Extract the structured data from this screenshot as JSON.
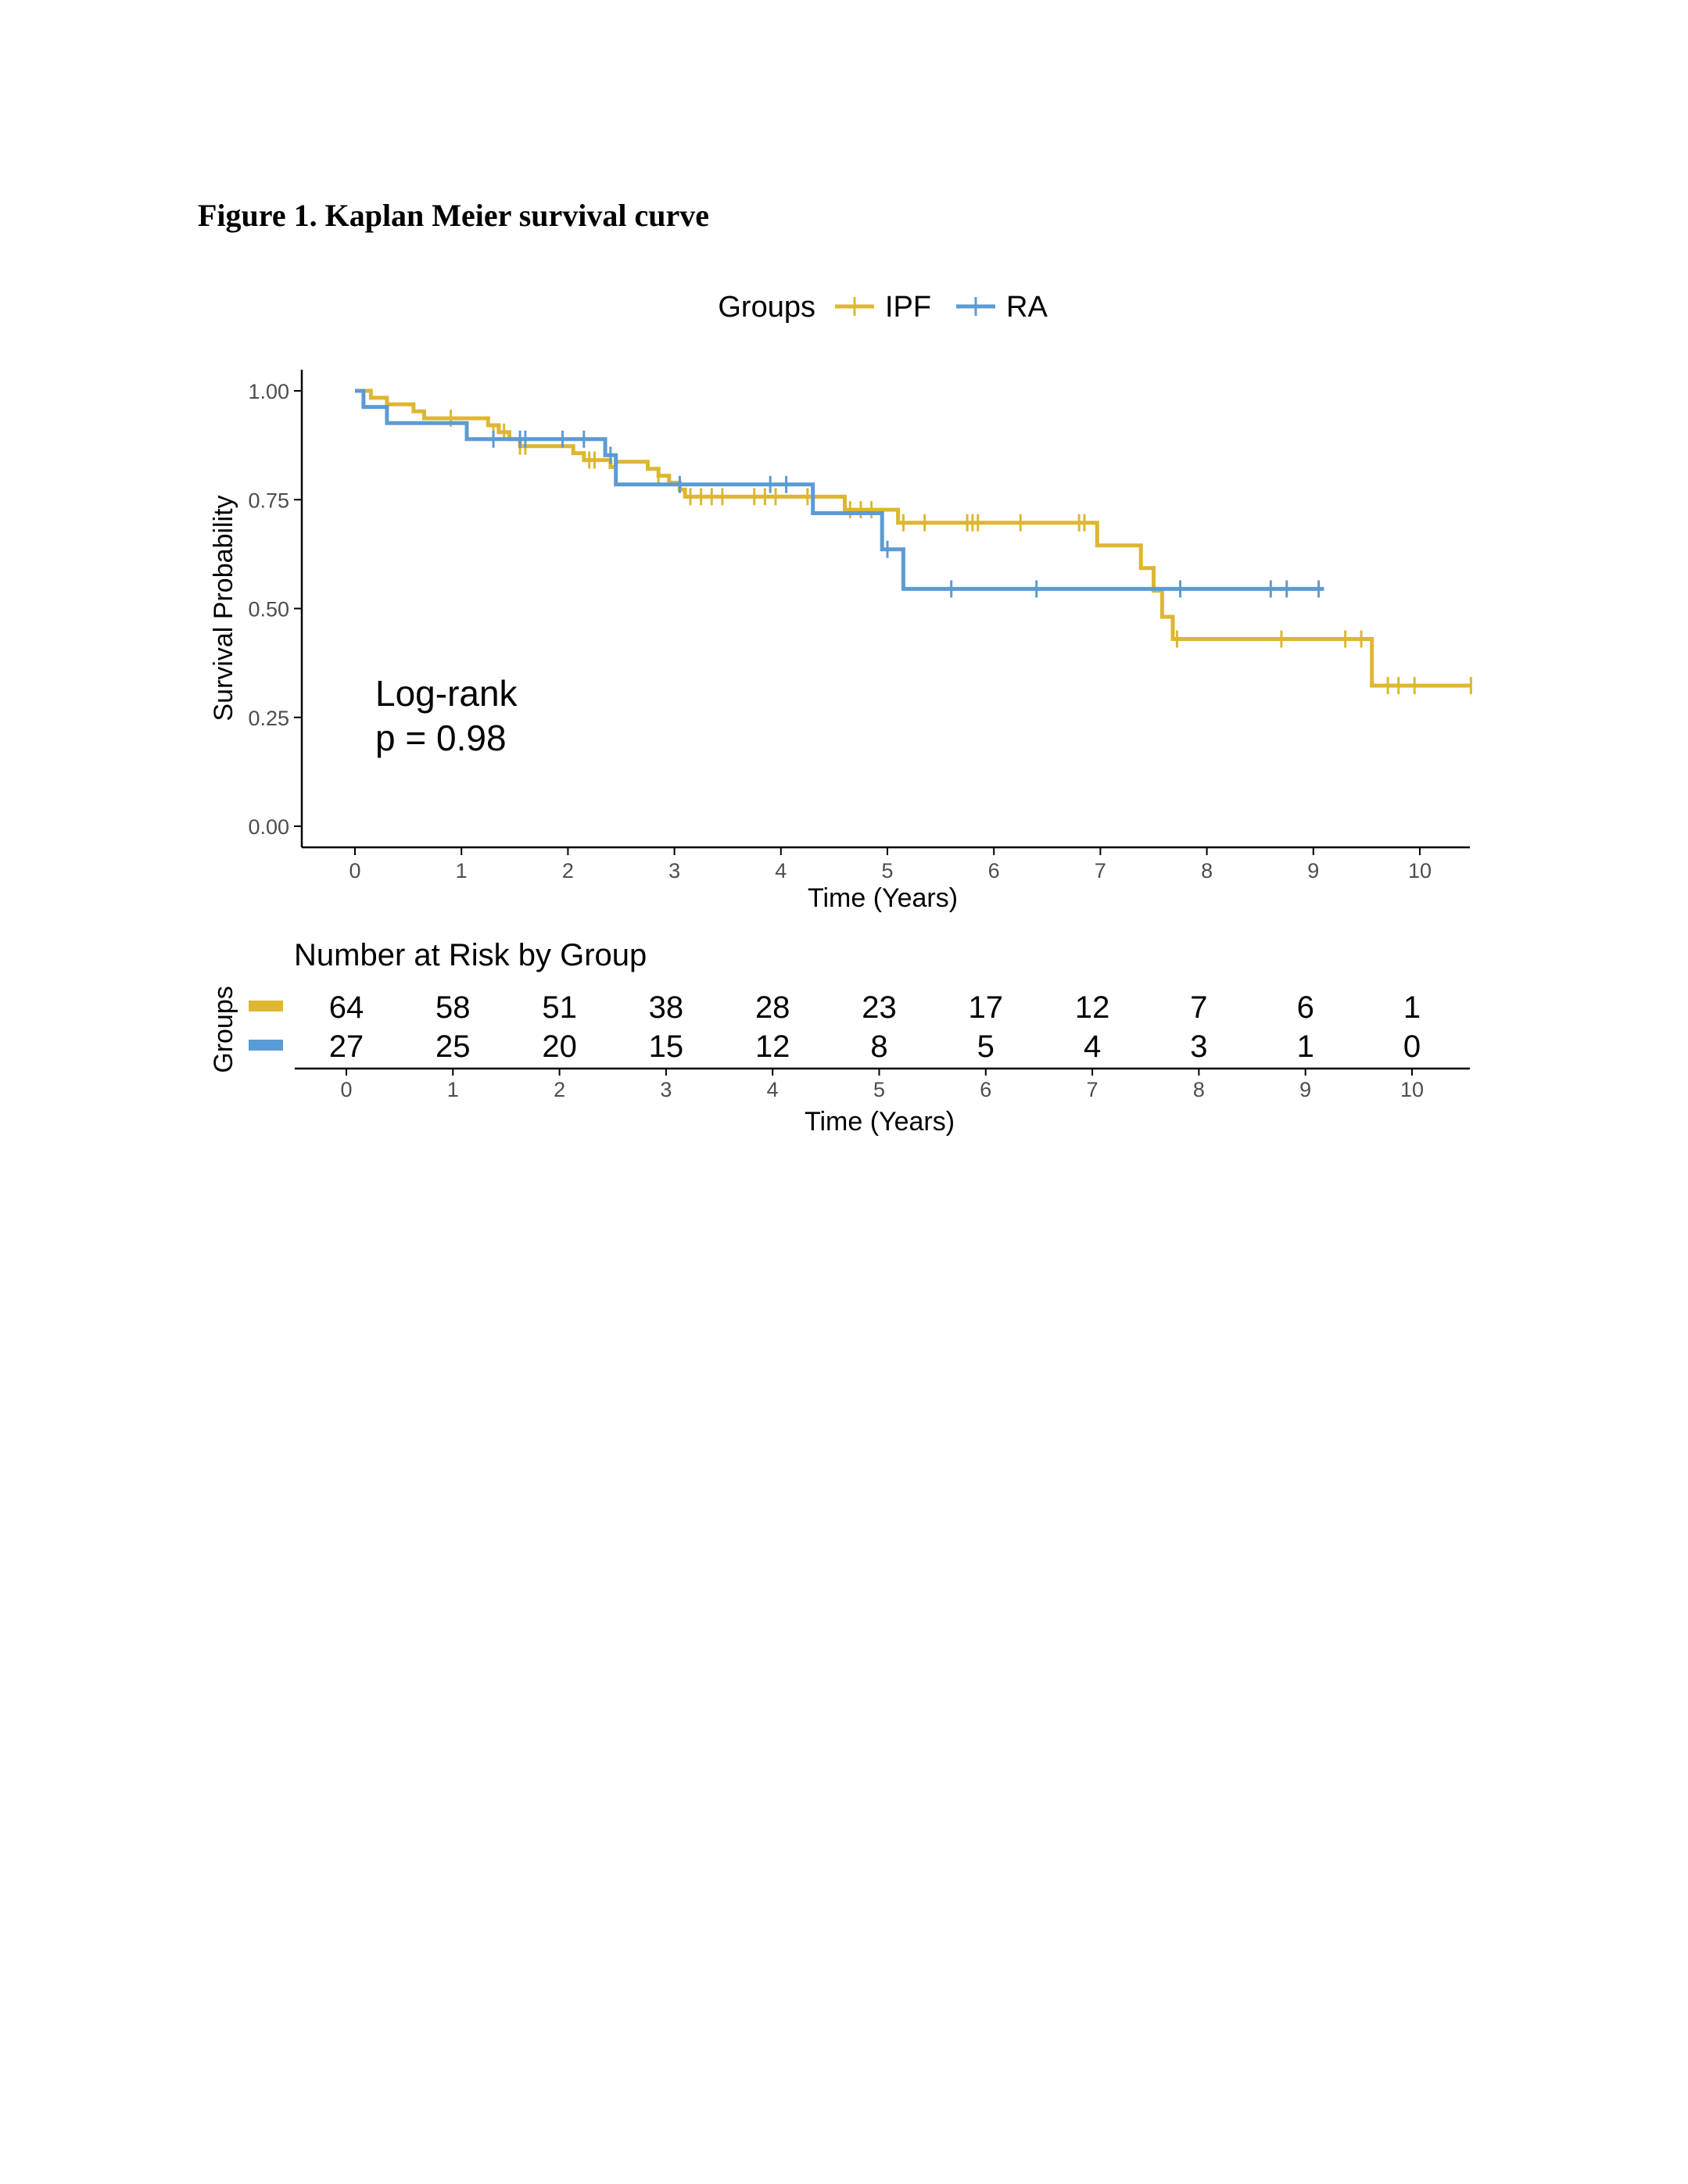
{
  "figure_title": "Figure 1. Kaplan Meier survival curve",
  "colors": {
    "ipf": "#DDB730",
    "ra": "#5B9BD5",
    "axis": "#000000",
    "tick_text": "#4D4D4D",
    "text": "#000000"
  },
  "chart_data": {
    "type": "line",
    "subtype": "kaplan-meier-step",
    "legend": {
      "title": "Groups",
      "placement": "top-center",
      "entries": [
        "IPF",
        "RA"
      ]
    },
    "xlabel": "Time (Years)",
    "ylabel": "Survival Probability",
    "xlim": [
      -0.5,
      10.5
    ],
    "ylim": [
      0,
      1.05
    ],
    "xticks": [
      0,
      1,
      2,
      3,
      4,
      5,
      6,
      7,
      8,
      9,
      10
    ],
    "xtick_labels": [
      "0",
      "1",
      "2",
      "3",
      "4",
      "5",
      "6",
      "7",
      "8",
      "9",
      "10"
    ],
    "yticks": [
      0,
      0.25,
      0.5,
      0.75,
      1.0
    ],
    "ytick_labels": [
      "0.00",
      "0.25",
      "0.50",
      "0.75",
      "1.00"
    ],
    "grid": false,
    "annotation": {
      "line1": "Log-rank",
      "line2": "p = 0.98"
    },
    "series": [
      {
        "name": "IPF",
        "color_key": "ipf",
        "steps": [
          [
            0,
            1.0
          ],
          [
            0.15,
            0.984
          ],
          [
            0.3,
            0.969
          ],
          [
            0.55,
            0.953
          ],
          [
            0.65,
            0.937
          ],
          [
            1.25,
            0.921
          ],
          [
            1.35,
            0.905
          ],
          [
            1.45,
            0.889
          ],
          [
            1.55,
            0.873
          ],
          [
            1.6,
            0.873
          ],
          [
            2.05,
            0.857
          ],
          [
            2.15,
            0.841
          ],
          [
            2.3,
            0.841
          ],
          [
            2.4,
            0.825
          ],
          [
            2.45,
            0.837
          ],
          [
            2.75,
            0.821
          ],
          [
            2.85,
            0.805
          ],
          [
            2.95,
            0.789
          ],
          [
            3.05,
            0.773
          ],
          [
            3.1,
            0.757
          ],
          [
            4.6,
            0.727
          ],
          [
            5.1,
            0.697
          ],
          [
            6.97,
            0.645
          ],
          [
            7.38,
            0.593
          ],
          [
            7.5,
            0.541
          ],
          [
            7.58,
            0.481
          ],
          [
            7.68,
            0.43
          ],
          [
            9.55,
            0.323
          ],
          [
            10.48,
            0.323
          ]
        ],
        "censored": [
          [
            0.9,
            0.937
          ],
          [
            1.3,
            0.905
          ],
          [
            1.4,
            0.905
          ],
          [
            1.55,
            0.873
          ],
          [
            1.6,
            0.873
          ],
          [
            2.2,
            0.841
          ],
          [
            2.25,
            0.841
          ],
          [
            2.45,
            0.837
          ],
          [
            2.85,
            0.805
          ],
          [
            3.15,
            0.757
          ],
          [
            3.25,
            0.757
          ],
          [
            3.35,
            0.757
          ],
          [
            3.45,
            0.757
          ],
          [
            3.75,
            0.757
          ],
          [
            3.85,
            0.757
          ],
          [
            3.95,
            0.757
          ],
          [
            4.25,
            0.757
          ],
          [
            4.65,
            0.727
          ],
          [
            4.75,
            0.727
          ],
          [
            4.85,
            0.727
          ],
          [
            5.15,
            0.697
          ],
          [
            5.35,
            0.697
          ],
          [
            5.75,
            0.697
          ],
          [
            5.8,
            0.697
          ],
          [
            5.85,
            0.697
          ],
          [
            6.25,
            0.697
          ],
          [
            6.8,
            0.697
          ],
          [
            6.85,
            0.697
          ],
          [
            7.72,
            0.43
          ],
          [
            8.7,
            0.43
          ],
          [
            9.3,
            0.43
          ],
          [
            9.45,
            0.43
          ],
          [
            9.7,
            0.323
          ],
          [
            9.8,
            0.323
          ],
          [
            9.95,
            0.323
          ],
          [
            10.48,
            0.323
          ]
        ],
        "number_at_risk": [
          64,
          58,
          51,
          38,
          28,
          23,
          17,
          12,
          7,
          6,
          1
        ]
      },
      {
        "name": "RA",
        "color_key": "ra",
        "steps": [
          [
            0,
            1.0
          ],
          [
            0.08,
            0.963
          ],
          [
            0.3,
            0.926
          ],
          [
            1.05,
            0.889
          ],
          [
            2.35,
            0.852
          ],
          [
            2.45,
            0.785
          ],
          [
            4.3,
            0.719
          ],
          [
            4.95,
            0.636
          ],
          [
            5.15,
            0.545
          ],
          [
            9.1,
            0.545
          ]
        ],
        "censored": [
          [
            1.3,
            0.889
          ],
          [
            1.55,
            0.889
          ],
          [
            1.6,
            0.889
          ],
          [
            1.95,
            0.889
          ],
          [
            2.15,
            0.889
          ],
          [
            2.4,
            0.852
          ],
          [
            3.05,
            0.785
          ],
          [
            3.9,
            0.785
          ],
          [
            4.05,
            0.785
          ],
          [
            5.0,
            0.636
          ],
          [
            5.6,
            0.545
          ],
          [
            6.4,
            0.545
          ],
          [
            7.75,
            0.545
          ],
          [
            8.6,
            0.545
          ],
          [
            8.75,
            0.545
          ],
          [
            9.05,
            0.545
          ]
        ],
        "number_at_risk": [
          27,
          25,
          20,
          15,
          12,
          8,
          5,
          4,
          3,
          1,
          0
        ]
      }
    ],
    "risk_table": {
      "title": "Number at Risk by Group",
      "ylabel": "Groups",
      "xlabel": "Time (Years)",
      "times": [
        0,
        1,
        2,
        3,
        4,
        5,
        6,
        7,
        8,
        9,
        10
      ],
      "tick_labels": [
        "0",
        "1",
        "2",
        "3",
        "4",
        "5",
        "6",
        "7",
        "8",
        "9",
        "10"
      ]
    }
  }
}
